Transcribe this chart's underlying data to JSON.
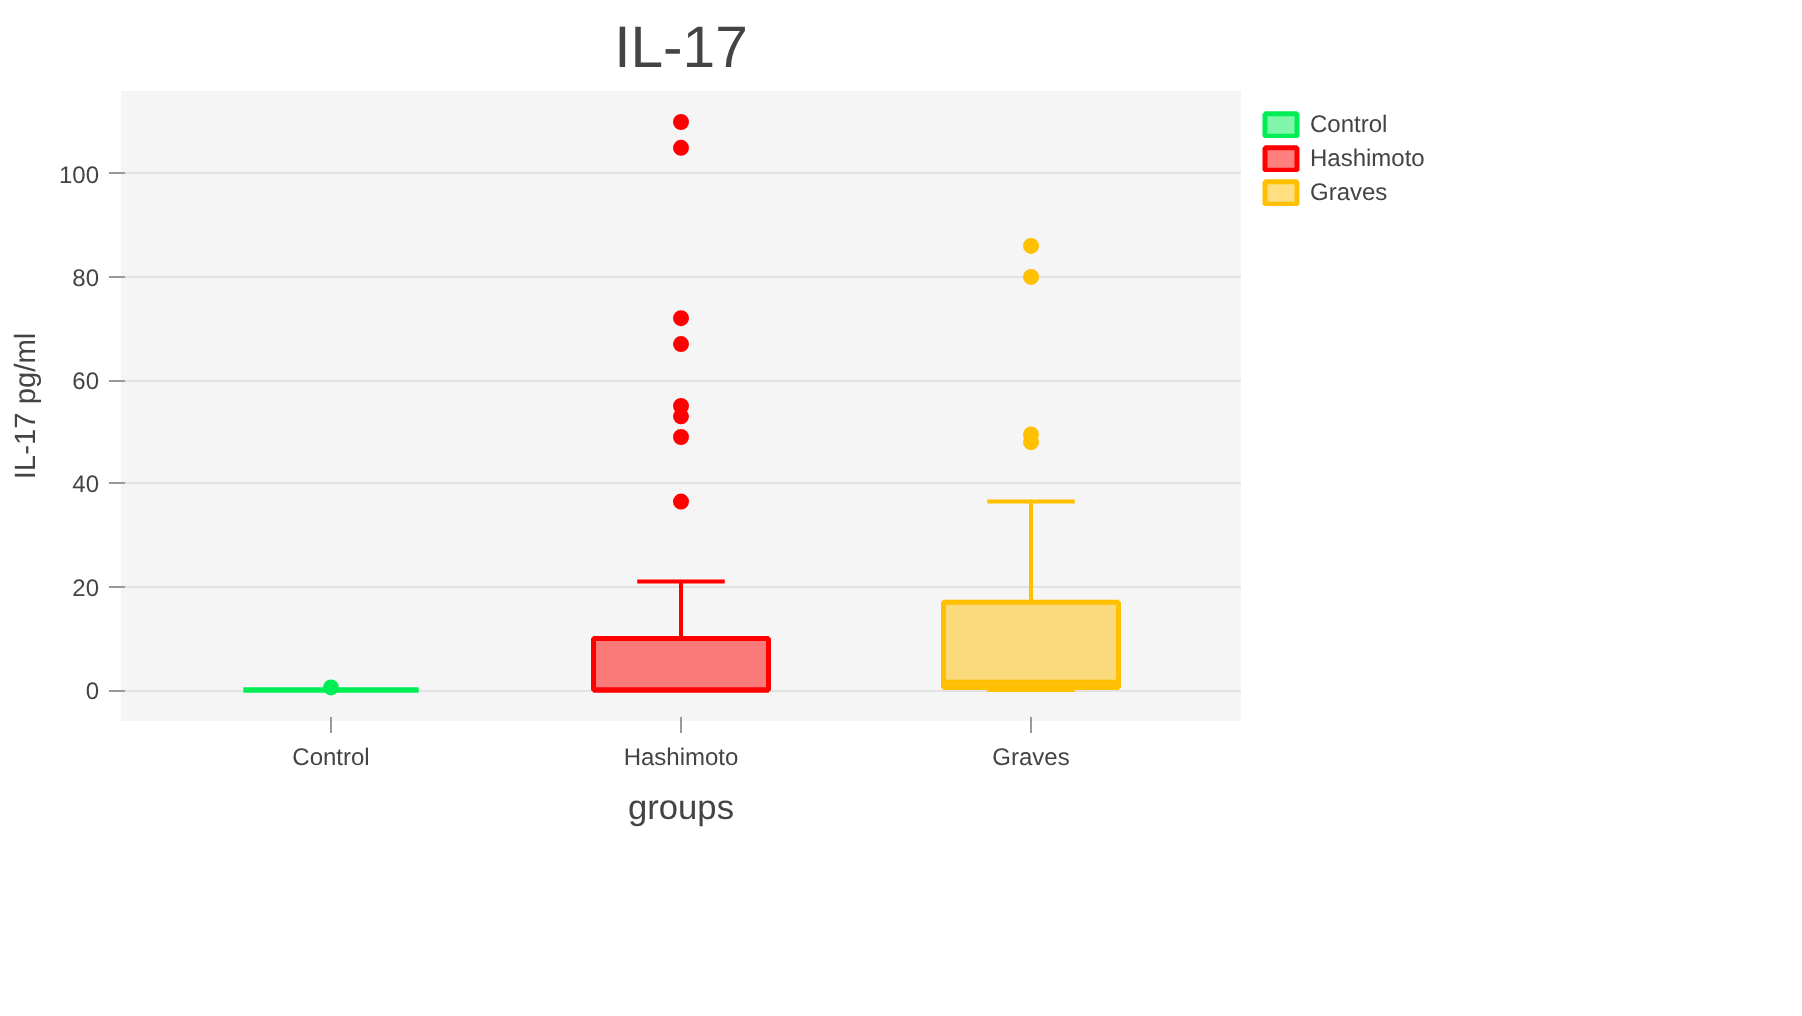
{
  "chart_data": {
    "type": "box",
    "title": "IL-17",
    "xlabel": "groups",
    "ylabel": "IL-17 pg/ml",
    "categories": [
      "Control",
      "Hashimoto",
      "Graves"
    ],
    "series": [
      {
        "name": "Control",
        "color": "#00ee55",
        "boxes": [
          {
            "low": 0,
            "q1": 0,
            "median": 0,
            "q3": 0,
            "high": 0,
            "outliers": [
              0.5
            ]
          },
          null,
          null
        ]
      },
      {
        "name": "Hashimoto",
        "color": "#ff0000",
        "boxes": [
          null,
          {
            "low": 0,
            "q1": 0,
            "median": 0,
            "q3": 10,
            "high": 21,
            "outliers": [
              110,
              105,
              72,
              67,
              55,
              53,
              49,
              36.5
            ]
          },
          null
        ]
      },
      {
        "name": "Graves",
        "color": "#ffc000",
        "boxes": [
          null,
          null,
          {
            "low": 0,
            "q1": 0.5,
            "median": 1.5,
            "q3": 17,
            "high": 36.5,
            "outliers": [
              86,
              80,
              49.5,
              48
            ]
          }
        ]
      }
    ],
    "ylim": [
      -6,
      116
    ],
    "yticks": [
      0,
      20,
      40,
      60,
      80,
      100
    ],
    "grid": "y",
    "legend": "top right"
  }
}
